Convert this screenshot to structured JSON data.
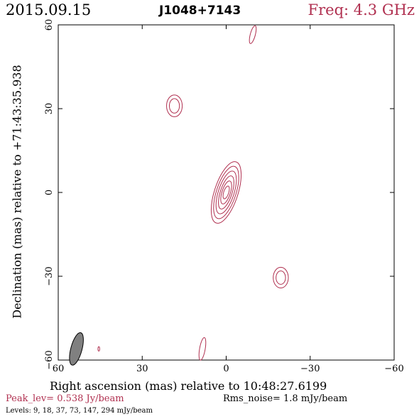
{
  "header": {
    "date": "2015.09.15",
    "source": "J1048+7143",
    "freq": "Freq: 4.3 GHz"
  },
  "footer": {
    "peak": "Peak_lev=  0.538 Jy/beam",
    "rms": "Rms_noise=  1.8 mJy/beam",
    "levels": "Levels:   9,  18,  37,  73, 147, 294 mJy/beam"
  },
  "colors": {
    "contour": "#b03050",
    "frame": "#000000",
    "beam": "#808080"
  },
  "chart_data": {
    "type": "contour",
    "xlabel": "Right ascension (mas) relative to 10:48:27.6199",
    "ylabel": "Declination (mas) relative to +71:43:35.938",
    "xlim": [
      60,
      -60
    ],
    "ylim": [
      -60,
      60
    ],
    "xticks": [
      60,
      30,
      0,
      -30,
      -60
    ],
    "yticks": [
      -60,
      -30,
      0,
      30,
      60
    ],
    "x_tick_labels": [
      "60",
      "30",
      "0",
      "−30",
      "−60"
    ],
    "y_tick_labels": [
      "−60",
      "−30",
      "0",
      "30",
      "60"
    ],
    "levels_mJy": [
      9,
      18,
      37,
      73,
      147,
      294
    ],
    "peak_Jy_per_beam": 0.538,
    "rms_mJy_per_beam": 1.8,
    "beam": {
      "x": 53.5,
      "y": -56,
      "major": 6,
      "minor": 2,
      "pa_deg": 15
    },
    "components": [
      {
        "name": "core",
        "x": 0,
        "y": 0,
        "contours": [
          {
            "a": 11.5,
            "b": 4.2,
            "pa": 18
          },
          {
            "a": 9.8,
            "b": 3.5,
            "pa": 18
          },
          {
            "a": 8.0,
            "b": 2.8,
            "pa": 18
          },
          {
            "a": 6.2,
            "b": 2.1,
            "pa": 18
          },
          {
            "a": 4.3,
            "b": 1.5,
            "pa": 18
          },
          {
            "a": 2.4,
            "b": 0.9,
            "pa": 18
          }
        ]
      },
      {
        "name": "upper-left",
        "x": 18.5,
        "y": 31,
        "contours": [
          {
            "a": 3.9,
            "b": 2.8,
            "pa": 0
          },
          {
            "a": 2.6,
            "b": 1.8,
            "pa": 0
          }
        ]
      },
      {
        "name": "lower-right",
        "x": -19.5,
        "y": -30.5,
        "contours": [
          {
            "a": 3.7,
            "b": 2.7,
            "pa": 0
          },
          {
            "a": 2.4,
            "b": 1.7,
            "pa": 0
          }
        ]
      },
      {
        "name": "top",
        "x": -9.5,
        "y": 56.5,
        "contours": [
          {
            "a": 3.3,
            "b": 0.9,
            "pa": 15
          }
        ]
      },
      {
        "name": "bottom",
        "x": 8.5,
        "y": -56,
        "contours": [
          {
            "a": 4.1,
            "b": 1.0,
            "pa": 10
          }
        ]
      },
      {
        "name": "bottom-left",
        "x": 45.5,
        "y": -56,
        "contours": [
          {
            "a": 0.8,
            "b": 0.3,
            "pa": 0
          }
        ]
      }
    ]
  }
}
